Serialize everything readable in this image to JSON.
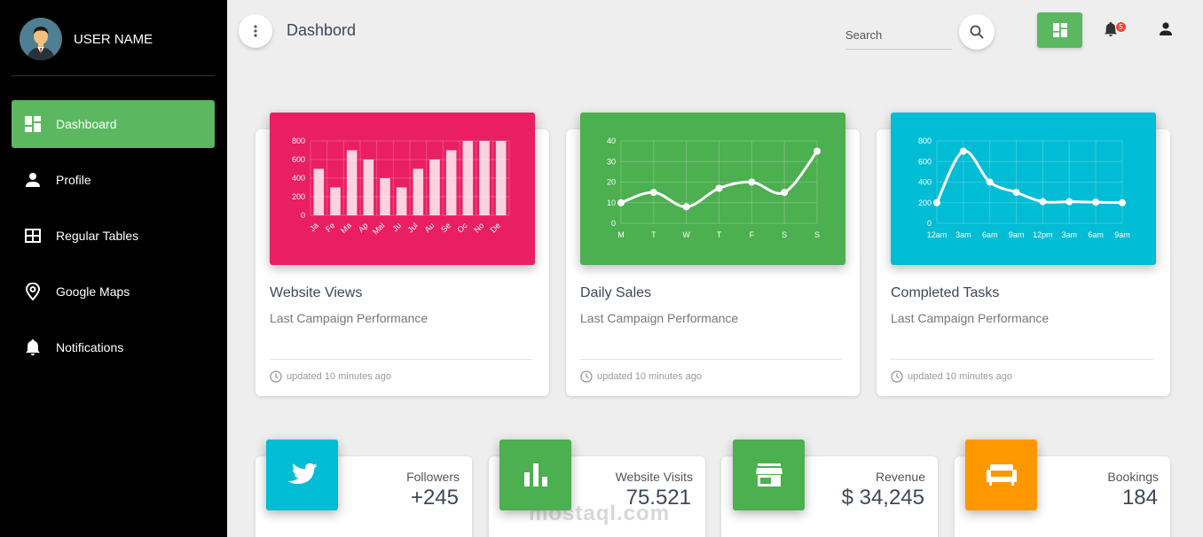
{
  "sidebar": {
    "user_name": "USER NAME",
    "items": [
      {
        "label": "Dashboard",
        "icon": "dashboard-icon",
        "active": true
      },
      {
        "label": "Profile",
        "icon": "person-icon",
        "active": false
      },
      {
        "label": "Regular Tables",
        "icon": "table-icon",
        "active": false
      },
      {
        "label": "Google Maps",
        "icon": "map-pin-icon",
        "active": false
      },
      {
        "label": "Notifications",
        "icon": "bell-icon",
        "active": false
      }
    ]
  },
  "topbar": {
    "title": "Dashbord",
    "search_placeholder": "Search",
    "notification_count": "5"
  },
  "colors": {
    "accent_green": "#5cb860",
    "pink": "#e91e63",
    "green": "#4caf50",
    "cyan": "#00bcd4",
    "orange": "#ff9800",
    "sidebar_bg": "#000000"
  },
  "cards": [
    {
      "title": "Website Views",
      "subtitle": "Last Campaign Performance",
      "footer": "updated 10 minutes ago"
    },
    {
      "title": "Daily Sales",
      "subtitle": "Last Campaign Performance",
      "footer": "updated 10 minutes ago"
    },
    {
      "title": "Completed Tasks",
      "subtitle": "Last Campaign Performance",
      "footer": "updated 10 minutes ago"
    }
  ],
  "chart_data": [
    {
      "type": "bar",
      "categories": [
        "Ja",
        "Fe",
        "Ma",
        "Ap",
        "Mai",
        "Ju",
        "Jul",
        "Au",
        "Se",
        "Oc",
        "No",
        "De"
      ],
      "values": [
        500,
        300,
        700,
        600,
        400,
        300,
        500,
        600,
        700,
        800,
        800,
        800
      ],
      "ylim": [
        0,
        800
      ],
      "yticks": [
        0,
        200,
        400,
        600,
        800
      ],
      "grid": true
    },
    {
      "type": "line",
      "categories": [
        "M",
        "T",
        "W",
        "T",
        "F",
        "S",
        "S"
      ],
      "values": [
        10,
        15,
        8,
        17,
        20,
        15,
        35
      ],
      "ylim": [
        0,
        40
      ],
      "yticks": [
        0,
        10,
        20,
        30,
        40
      ],
      "grid": true
    },
    {
      "type": "line",
      "categories": [
        "12am",
        "3am",
        "6am",
        "9am",
        "12pm",
        "3am",
        "6am",
        "9am"
      ],
      "values": [
        200,
        700,
        400,
        300,
        210,
        210,
        205,
        200
      ],
      "ylim": [
        0,
        800
      ],
      "yticks": [
        0,
        200,
        400,
        600,
        800
      ],
      "grid": true
    }
  ],
  "stats": [
    {
      "label": "Followers",
      "value": "+245",
      "icon": "twitter-icon"
    },
    {
      "label": "Website Visits",
      "value": "75.521",
      "icon": "bar-chart-icon"
    },
    {
      "label": "Revenue",
      "value": "$ 34,245",
      "icon": "store-icon"
    },
    {
      "label": "Bookings",
      "value": "184",
      "icon": "sofa-icon"
    }
  ],
  "watermark": "mostaql.com"
}
